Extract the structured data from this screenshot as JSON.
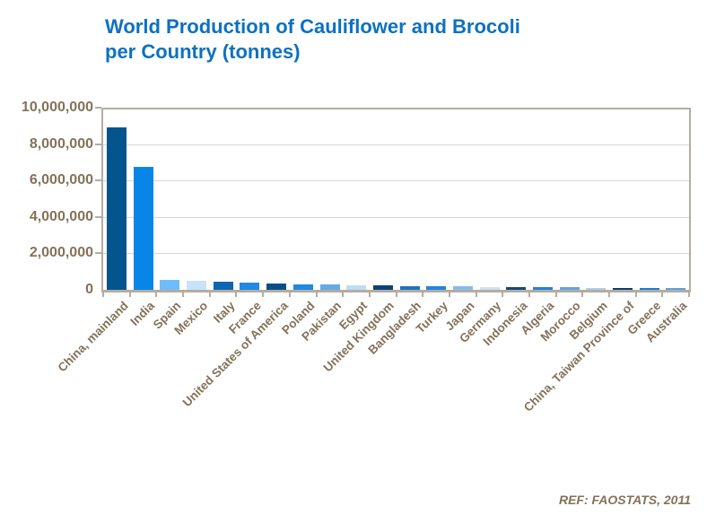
{
  "title": {
    "line1": "World Production of Cauliflower and Brocoli",
    "line2": "per Country (tonnes)"
  },
  "footer": {
    "ref": "REF: FAOSTATS, 2011"
  },
  "colors": {
    "title_text": "#0D71C1",
    "axis_text": "#837259",
    "frame": "#B5ACA1",
    "gridline": "#DAD6D0",
    "background": "#FFFFFF"
  },
  "chart_data": {
    "type": "bar",
    "title": "World Production of Cauliflower and Brocoli per Country (tonnes)",
    "xlabel": "",
    "ylabel": "",
    "ylim": [
      0,
      10000000
    ],
    "ytick_interval": 2000000,
    "ytick_labels": [
      "0",
      "2,000,000",
      "4,000,000",
      "6,000,000",
      "8,000,000",
      "10,000,000"
    ],
    "grid": true,
    "legend_position": "none",
    "categories": [
      "China, mainland",
      "India",
      "Spain",
      "Mexico",
      "Italy",
      "France",
      "United States of America",
      "Poland",
      "Pakistan",
      "Egypt",
      "United Kingdom",
      "Bangladesh",
      "Turkey",
      "Japan",
      "Germany",
      "Indonesia",
      "Algeria",
      "Morocco",
      "Belgium",
      "China, Taiwan Province of",
      "Greece",
      "Australia"
    ],
    "values": [
      8900000,
      6750000,
      520000,
      480000,
      450000,
      400000,
      350000,
      320000,
      280000,
      250000,
      230000,
      210000,
      195000,
      180000,
      170000,
      160000,
      150000,
      140000,
      125000,
      110000,
      95000,
      80000
    ],
    "bar_colors": [
      "#04548E",
      "#0886E8",
      "#6FBCFA",
      "#C7E2F9",
      "#0D66B0",
      "#1E88E8",
      "#0B4E87",
      "#1F88E5",
      "#62AAE9",
      "#BFDCF5",
      "#0B4379",
      "#1D73C0",
      "#1F86E2",
      "#84BBEE",
      "#C9E1F6",
      "#12497E",
      "#1F81DC",
      "#61A6E6",
      "#ABCFF1",
      "#0E3F6F",
      "#1B7FD6",
      "#54A4E8"
    ]
  }
}
